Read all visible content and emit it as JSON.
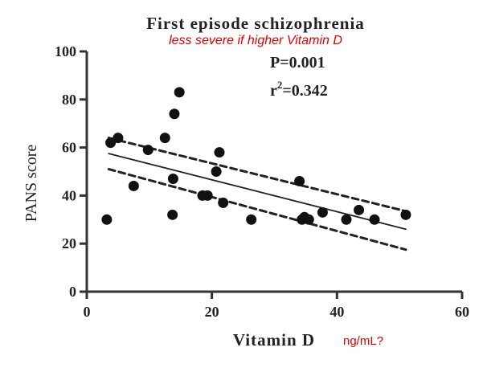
{
  "chart_data": {
    "type": "scatter",
    "title": "First episode schizophrenia",
    "subtitle": "less severe if higher Vitamin D",
    "xlabel": "Vitamin D",
    "xlabel_note": "ng/mL?",
    "ylabel": "PANS score",
    "xlim": [
      0,
      60
    ],
    "ylim": [
      0,
      100
    ],
    "xticks": [
      0,
      20,
      40,
      60
    ],
    "yticks": [
      0,
      20,
      40,
      60,
      80,
      100
    ],
    "xtick_labels": [
      "0",
      "20",
      "40",
      "60"
    ],
    "ytick_labels": [
      "0",
      "20",
      "40",
      "60",
      "80",
      "100"
    ],
    "stats": {
      "p": "P=0.001",
      "r2_prefix": "r",
      "r2_exp": "2",
      "r2_value": "=0.342"
    },
    "points": [
      {
        "x": 3.2,
        "y": 30
      },
      {
        "x": 3.8,
        "y": 62
      },
      {
        "x": 5.0,
        "y": 64
      },
      {
        "x": 7.5,
        "y": 44
      },
      {
        "x": 9.8,
        "y": 59
      },
      {
        "x": 12.5,
        "y": 64
      },
      {
        "x": 13.8,
        "y": 47
      },
      {
        "x": 13.7,
        "y": 32
      },
      {
        "x": 14.0,
        "y": 74
      },
      {
        "x": 14.8,
        "y": 83
      },
      {
        "x": 18.5,
        "y": 40
      },
      {
        "x": 19.3,
        "y": 40
      },
      {
        "x": 20.7,
        "y": 50
      },
      {
        "x": 21.2,
        "y": 58
      },
      {
        "x": 21.8,
        "y": 37
      },
      {
        "x": 26.3,
        "y": 30
      },
      {
        "x": 34.0,
        "y": 46
      },
      {
        "x": 34.4,
        "y": 30
      },
      {
        "x": 34.8,
        "y": 31
      },
      {
        "x": 35.5,
        "y": 30
      },
      {
        "x": 37.7,
        "y": 33
      },
      {
        "x": 41.5,
        "y": 30
      },
      {
        "x": 43.5,
        "y": 34
      },
      {
        "x": 46.0,
        "y": 30
      },
      {
        "x": 51.0,
        "y": 32
      }
    ],
    "fit": {
      "x1": 3.5,
      "y1": 57.5,
      "x2": 51.0,
      "y2": 26.0
    },
    "ci_upper": {
      "x1": 3.5,
      "y1": 64.0,
      "x2": 51.0,
      "y2": 33.5
    },
    "ci_lower": {
      "x1": 3.5,
      "y1": 51.0,
      "x2": 51.0,
      "y2": 17.5
    }
  }
}
